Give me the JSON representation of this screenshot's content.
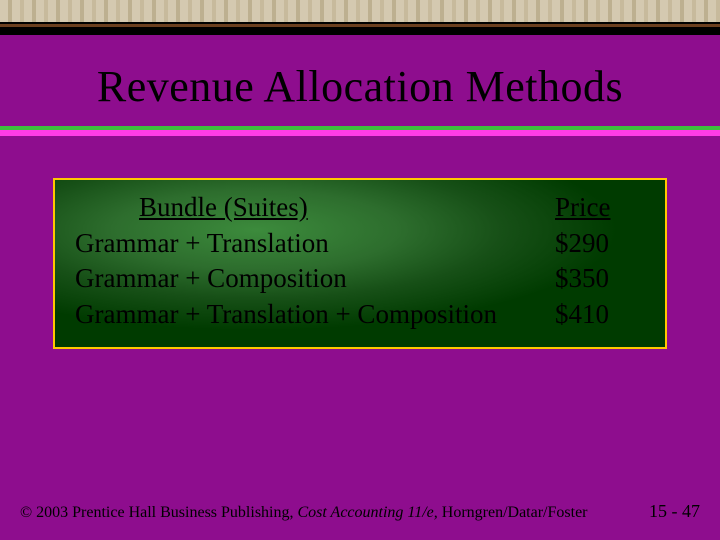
{
  "slide": {
    "title": "Revenue Allocation Methods",
    "background_color": "#8e0d8e",
    "rule_colors": {
      "green": "#3dbf3d",
      "magenta": "#ff3ce6"
    }
  },
  "content_box": {
    "border_color": "#ffc800",
    "bg_gradient_center": "#3c8b3c",
    "bg_gradient_edge": "#003b00",
    "table": {
      "headers": {
        "bundle": "Bundle (Suites)",
        "price": "Price"
      },
      "rows": [
        {
          "bundle": "Grammar + Translation",
          "price": "$290"
        },
        {
          "bundle": "Grammar + Composition",
          "price": "$350"
        },
        {
          "bundle": "Grammar + Translation + Composition",
          "price": "$410"
        }
      ],
      "font_size": 27,
      "text_color": "#000000"
    }
  },
  "footer": {
    "copyright_prefix": "© 2003 Prentice Hall Business Publishing, ",
    "book": "Cost Accounting 11/e,",
    "authors": " Horngren/Datar/Foster",
    "page": "15 - 47",
    "font_size": 16,
    "text_color": "#000000"
  }
}
